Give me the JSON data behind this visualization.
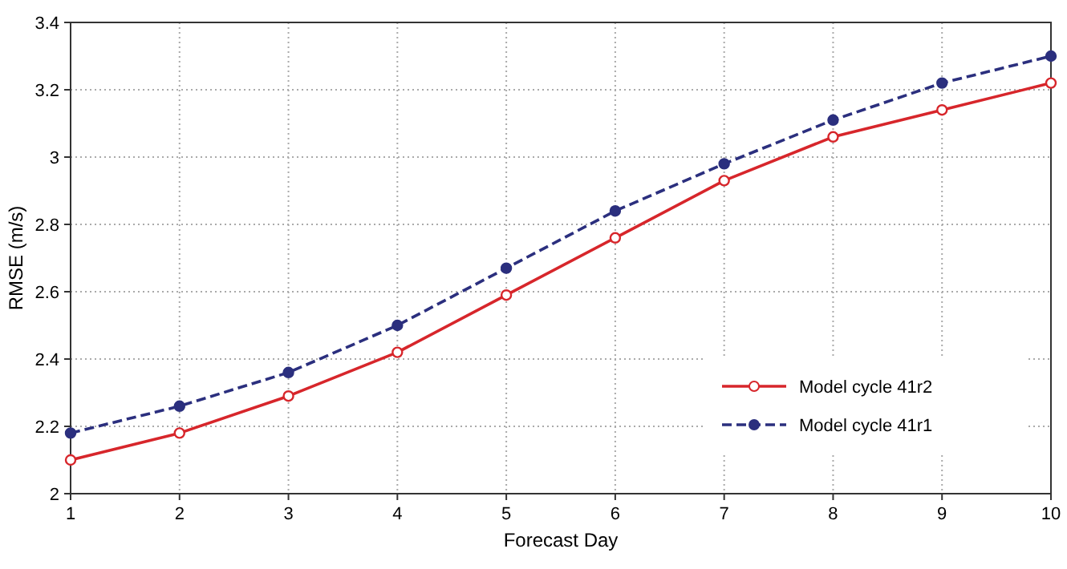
{
  "chart_data": {
    "type": "line",
    "xlabel": "Forecast Day",
    "ylabel": "RMSE (m/s)",
    "x": [
      1,
      2,
      3,
      4,
      5,
      6,
      7,
      8,
      9,
      10
    ],
    "series": [
      {
        "name": "Model cycle 41r2",
        "color": "#d7262b",
        "line_style": "solid",
        "values": [
          2.1,
          2.18,
          2.29,
          2.42,
          2.59,
          2.76,
          2.93,
          3.06,
          3.14,
          3.22
        ]
      },
      {
        "name": "Model cycle 41r1",
        "color": "#2b2f7e",
        "line_style": "dashed",
        "values": [
          2.18,
          2.26,
          2.36,
          2.5,
          2.67,
          2.84,
          2.98,
          3.11,
          3.22,
          3.3
        ]
      }
    ],
    "xlim": [
      1,
      10
    ],
    "xticks": [
      1,
      2,
      3,
      4,
      5,
      6,
      7,
      8,
      9,
      10
    ],
    "ylim": [
      2,
      3.4
    ],
    "yticks": [
      2,
      2.2,
      2.4,
      2.6,
      2.8,
      3,
      3.2,
      3.4
    ],
    "grid": true,
    "legend": "bottom right",
    "marker": "circle"
  }
}
